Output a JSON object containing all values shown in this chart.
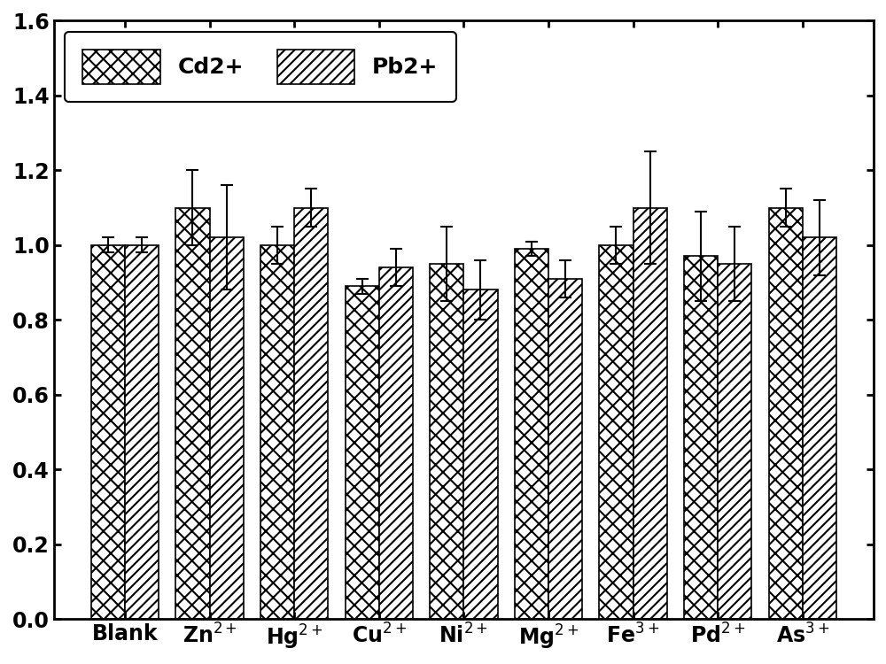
{
  "categories": [
    "Blank",
    "Zn$^{2+}$",
    "Hg$^{2+}$",
    "Cu$^{2+}$",
    "Ni$^{2+}$",
    "Mg$^{2+}$",
    "Fe$^{3+}$",
    "Pd$^{2+}$",
    "As$^{3+}$"
  ],
  "cd_values": [
    1.0,
    1.1,
    1.0,
    0.89,
    0.95,
    0.99,
    1.0,
    0.97,
    1.1
  ],
  "pb_values": [
    1.0,
    1.02,
    1.1,
    0.94,
    0.88,
    0.91,
    1.1,
    0.95,
    1.02
  ],
  "cd_errors": [
    0.02,
    0.1,
    0.05,
    0.02,
    0.1,
    0.02,
    0.05,
    0.12,
    0.05
  ],
  "pb_errors": [
    0.02,
    0.14,
    0.05,
    0.05,
    0.08,
    0.05,
    0.15,
    0.1,
    0.1
  ],
  "cd_label": "Cd2+",
  "pb_label": "Pb2+",
  "ylim": [
    0.0,
    1.6
  ],
  "yticks": [
    0.0,
    0.2,
    0.4,
    0.6,
    0.8,
    1.0,
    1.2,
    1.4,
    1.6
  ],
  "bar_width": 0.4,
  "background_color": "#ffffff",
  "cd_hatch": "xx",
  "pb_hatch": "///",
  "cd_facecolor": "#ffffff",
  "pb_facecolor": "#ffffff",
  "edgecolor": "#000000",
  "legend_fontsize": 18,
  "tick_fontsize": 17,
  "axis_linewidth": 2.0,
  "figsize": [
    10.0,
    7.5
  ],
  "dpi": 100
}
